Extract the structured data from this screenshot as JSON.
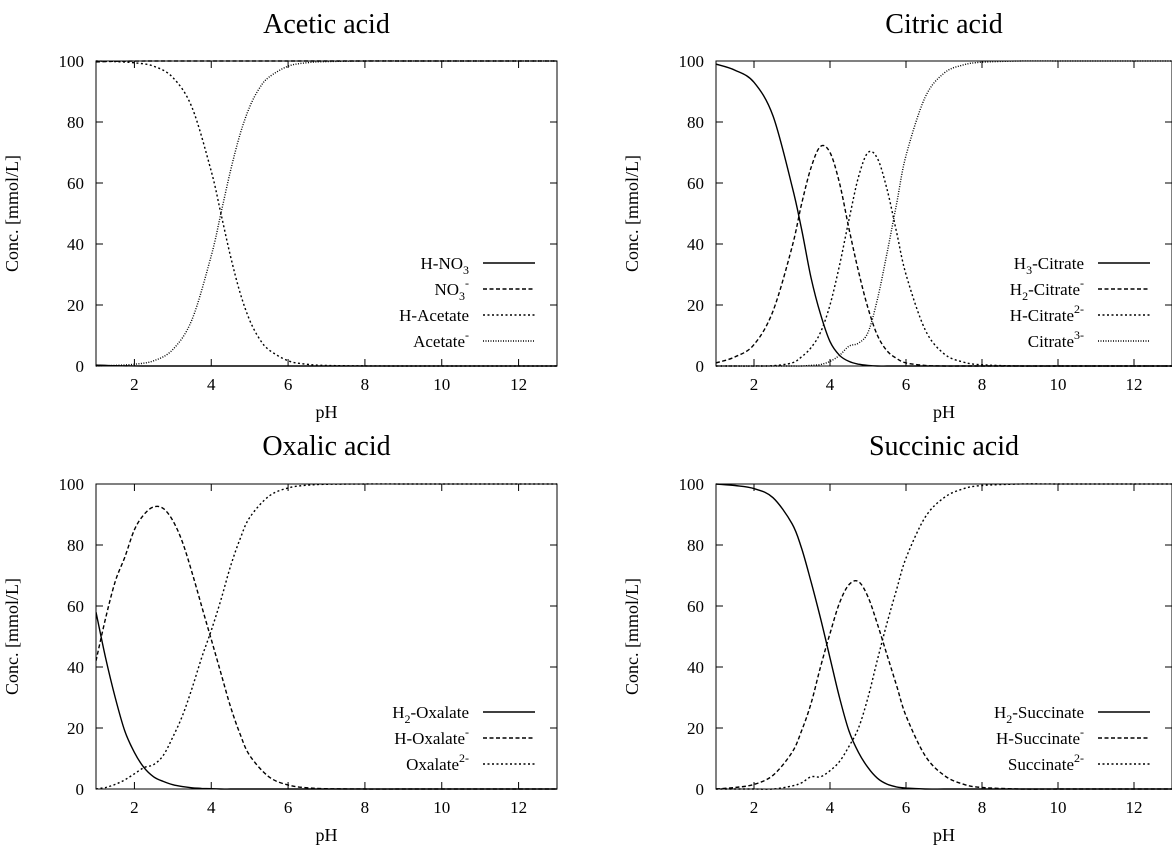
{
  "figure": {
    "colors": {
      "ink": "#000000",
      "background": "#ffffff"
    }
  },
  "chart_data": [
    {
      "type": "line",
      "title": "Acetic acid",
      "xlabel": "pH",
      "ylabel": "Conc. [mmol/L]",
      "xlim": [
        1,
        13
      ],
      "ylim": [
        0,
        100
      ],
      "xticks": [
        2,
        4,
        6,
        8,
        10,
        12
      ],
      "yticks": [
        0,
        20,
        40,
        60,
        80,
        100
      ],
      "grid": false,
      "legend_position": "bottom-right",
      "x": [
        1,
        1.5,
        2,
        2.5,
        3,
        3.5,
        4,
        4.25,
        4.5,
        4.75,
        5,
        5.25,
        5.5,
        6,
        6.5,
        7,
        8,
        9,
        10,
        11,
        12,
        13
      ],
      "series": [
        {
          "name": "H-NO3",
          "legend": {
            "base": "H-NO",
            "sub": "3",
            "sup": ""
          },
          "dash": "solid",
          "values": [
            0.3,
            0.1,
            0.03,
            0.01,
            0,
            0,
            0,
            0,
            0,
            0,
            0,
            0,
            0,
            0,
            0,
            0,
            0,
            0,
            0,
            0,
            0,
            0
          ]
        },
        {
          "name": "NO3-",
          "legend": {
            "base": "NO",
            "sub": "3",
            "sup": "-"
          },
          "dash": "dashed",
          "values": [
            99.7,
            99.9,
            99.97,
            100,
            100,
            100,
            100,
            100,
            100,
            100,
            100,
            100,
            100,
            100,
            100,
            100,
            100,
            100,
            100,
            100,
            100,
            100
          ]
        },
        {
          "name": "H-Acetate",
          "legend": {
            "base": "H-Acetate",
            "sub": "",
            "sup": ""
          },
          "dash": "dotted",
          "values": [
            100,
            99.8,
            99.4,
            98.3,
            94.6,
            84.8,
            63.8,
            50,
            36.0,
            24.0,
            15.0,
            9.0,
            5.3,
            1.7,
            0.55,
            0.18,
            0.02,
            0,
            0,
            0,
            0,
            0
          ]
        },
        {
          "name": "Acetate-",
          "legend": {
            "base": "Acetate",
            "sub": "",
            "sup": "-"
          },
          "dash": "fine-dotted",
          "values": [
            0,
            0.2,
            0.6,
            1.7,
            5.4,
            15.2,
            36.2,
            50,
            64.0,
            76.0,
            85.0,
            91.0,
            94.7,
            98.3,
            99.45,
            99.8,
            100,
            100,
            100,
            100,
            100,
            100
          ]
        }
      ]
    },
    {
      "type": "line",
      "title": "Citric acid",
      "xlabel": "pH",
      "ylabel": "Conc. [mmol/L]",
      "xlim": [
        1,
        13
      ],
      "ylim": [
        0,
        100
      ],
      "xticks": [
        2,
        4,
        6,
        8,
        10,
        12
      ],
      "yticks": [
        0,
        20,
        40,
        60,
        80,
        100
      ],
      "grid": false,
      "legend_position": "bottom-right",
      "x": [
        1,
        1.5,
        2,
        2.5,
        3,
        3.25,
        3.5,
        3.75,
        4,
        4.25,
        4.5,
        4.75,
        5,
        5.25,
        5.5,
        5.75,
        6,
        6.5,
        7,
        7.5,
        8,
        9,
        10,
        11,
        12,
        13
      ],
      "series": [
        {
          "name": "H3-Citrate",
          "legend": {
            "base": "H",
            "sub": "3",
            "sup": "",
            "rest": "-Citrate"
          },
          "dash": "solid",
          "values": [
            99,
            97,
            93,
            82,
            59,
            45,
            29,
            17,
            8,
            3.5,
            1.5,
            0.6,
            0.2,
            0,
            0,
            0,
            0,
            0,
            0,
            0,
            0,
            0,
            0,
            0,
            0,
            0
          ]
        },
        {
          "name": "H2-Citrate-",
          "legend": {
            "base": "H",
            "sub": "2",
            "sup": "-",
            "rest": "-Citrate"
          },
          "dash": "dashed",
          "values": [
            1,
            3,
            7,
            18,
            39,
            53,
            65,
            72,
            70,
            60,
            45,
            31,
            19,
            10,
            5,
            2.5,
            1,
            0.2,
            0,
            0,
            0,
            0,
            0,
            0,
            0,
            0
          ]
        },
        {
          "name": "H-Citrate2-",
          "legend": {
            "base": "H-Citrate",
            "sub": "",
            "sup": "2-"
          },
          "dash": "dotted",
          "values": [
            0,
            0,
            0,
            0.1,
            1,
            3,
            6,
            11,
            20,
            33,
            48,
            62,
            70,
            68,
            58,
            44,
            30,
            12,
            4,
            1.3,
            0.4,
            0,
            0,
            0,
            0,
            0
          ]
        },
        {
          "name": "Citrate3-",
          "legend": {
            "base": "Citrate",
            "sub": "",
            "sup": "3-"
          },
          "dash": "fine-dotted",
          "values": [
            0,
            0,
            0,
            0,
            0,
            0,
            0.2,
            0.5,
            1.5,
            3.5,
            6.5,
            7.5,
            11,
            22,
            37,
            53,
            69,
            88,
            96,
            98.7,
            99.6,
            100,
            100,
            100,
            100,
            100
          ]
        }
      ]
    },
    {
      "type": "line",
      "title": "Oxalic acid",
      "xlabel": "pH",
      "ylabel": "Conc. [mmol/L]",
      "xlim": [
        1,
        13
      ],
      "ylim": [
        0,
        100
      ],
      "xticks": [
        2,
        4,
        6,
        8,
        10,
        12
      ],
      "yticks": [
        0,
        20,
        40,
        60,
        80,
        100
      ],
      "grid": false,
      "legend_position": "bottom-right",
      "x": [
        1,
        1.25,
        1.5,
        1.75,
        2,
        2.25,
        2.5,
        2.75,
        3,
        3.25,
        3.5,
        3.75,
        4,
        4.25,
        4.5,
        4.75,
        5,
        5.5,
        6,
        6.5,
        7,
        8,
        9,
        10,
        11,
        12,
        13
      ],
      "series": [
        {
          "name": "H2-Oxalate",
          "legend": {
            "base": "H",
            "sub": "2",
            "sup": "",
            "rest": "-Oxalate"
          },
          "dash": "solid",
          "values": [
            58,
            43,
            30,
            19,
            12,
            7,
            4,
            2.5,
            1.4,
            0.8,
            0.4,
            0.2,
            0.1,
            0,
            0,
            0,
            0,
            0,
            0,
            0,
            0,
            0,
            0,
            0,
            0,
            0,
            0
          ]
        },
        {
          "name": "H-Oxalate-",
          "legend": {
            "base": "H-Oxalate",
            "sub": "",
            "sup": "-"
          },
          "dash": "dashed",
          "values": [
            42,
            56,
            68,
            76,
            85,
            90,
            92.5,
            92,
            88,
            81,
            71,
            60,
            49,
            38,
            27,
            18,
            11,
            4,
            1.3,
            0.4,
            0.1,
            0,
            0,
            0,
            0,
            0,
            0
          ]
        },
        {
          "name": "Oxalate2-",
          "legend": {
            "base": "Oxalate",
            "sub": "",
            "sup": "2-"
          },
          "dash": "dotted",
          "values": [
            0,
            0.5,
            1.5,
            3,
            5,
            7,
            8,
            11,
            17,
            24,
            33,
            43,
            52,
            62,
            73,
            82,
            89,
            96,
            98.7,
            99.6,
            99.9,
            100,
            100,
            100,
            100,
            100,
            100
          ]
        }
      ]
    },
    {
      "type": "line",
      "title": "Succinic acid",
      "xlabel": "pH",
      "ylabel": "Conc. [mmol/L]",
      "xlim": [
        1,
        13
      ],
      "ylim": [
        0,
        100
      ],
      "xticks": [
        2,
        4,
        6,
        8,
        10,
        12
      ],
      "yticks": [
        0,
        20,
        40,
        60,
        80,
        100
      ],
      "grid": false,
      "legend_position": "bottom-right",
      "x": [
        1,
        1.5,
        2,
        2.5,
        3,
        3.25,
        3.5,
        3.75,
        4,
        4.25,
        4.5,
        4.75,
        5,
        5.25,
        5.5,
        5.75,
        6,
        6.5,
        7,
        7.5,
        8,
        9,
        10,
        11,
        12,
        13
      ],
      "series": [
        {
          "name": "H2-Succinate",
          "legend": {
            "base": "H",
            "sub": "2",
            "sup": "",
            "rest": "-Succinate"
          },
          "dash": "solid",
          "values": [
            100,
            99.5,
            98.5,
            95.5,
            87,
            79,
            68,
            56,
            43,
            30,
            19,
            12,
            7,
            3.5,
            1.6,
            0.7,
            0.3,
            0,
            0,
            0,
            0,
            0,
            0,
            0,
            0,
            0
          ]
        },
        {
          "name": "H-Succinate-",
          "legend": {
            "base": "H-Succinate",
            "sub": "",
            "sup": "-"
          },
          "dash": "dashed",
          "values": [
            0,
            0.5,
            1.5,
            4.5,
            12,
            19,
            28,
            40,
            51,
            61,
            67,
            68,
            63,
            54,
            44,
            34,
            24,
            11,
            4.5,
            1.6,
            0.5,
            0,
            0,
            0,
            0,
            0
          ]
        },
        {
          "name": "Succinate2-",
          "legend": {
            "base": "Succinate",
            "sub": "",
            "sup": "2-"
          },
          "dash": "dotted",
          "values": [
            0,
            0,
            0,
            0,
            1,
            2,
            4,
            4,
            6,
            9,
            14,
            20,
            30,
            42.5,
            54.4,
            65.3,
            75.7,
            89,
            95.5,
            98.4,
            99.5,
            100,
            100,
            100,
            100,
            100
          ]
        }
      ]
    }
  ]
}
